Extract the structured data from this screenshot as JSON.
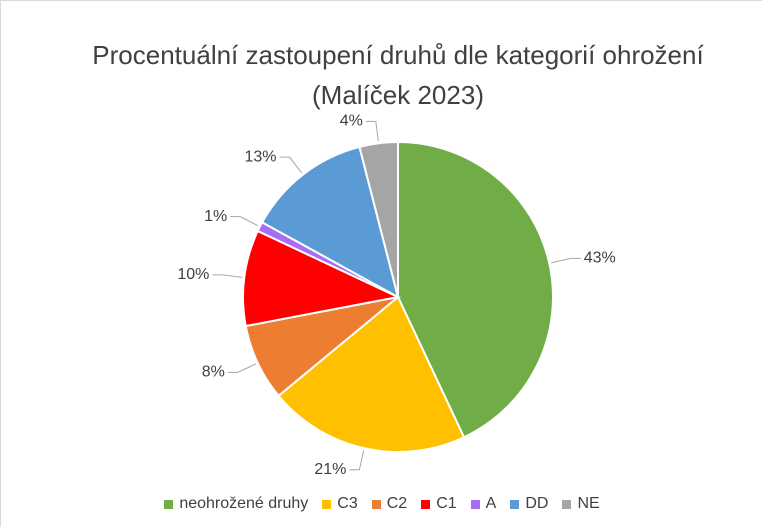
{
  "chart_data": {
    "type": "pie",
    "title": "Procentuální zastoupení druhů dle kategorií ohrožení (Malíček 2023)",
    "categories": [
      "neohrožené druhy",
      "C3",
      "C2",
      "C1",
      "A",
      "DD",
      "NE"
    ],
    "values": [
      43,
      21,
      8,
      10,
      1,
      13,
      4
    ],
    "value_labels": [
      "43%",
      "21%",
      "8%",
      "10%",
      "1%",
      "13%",
      "4%"
    ],
    "colors": [
      "#70ad47",
      "#ffc000",
      "#ed7d31",
      "#ff0000",
      "#a86cf5",
      "#5b9bd5",
      "#a5a5a5"
    ],
    "legend": "bottom"
  }
}
